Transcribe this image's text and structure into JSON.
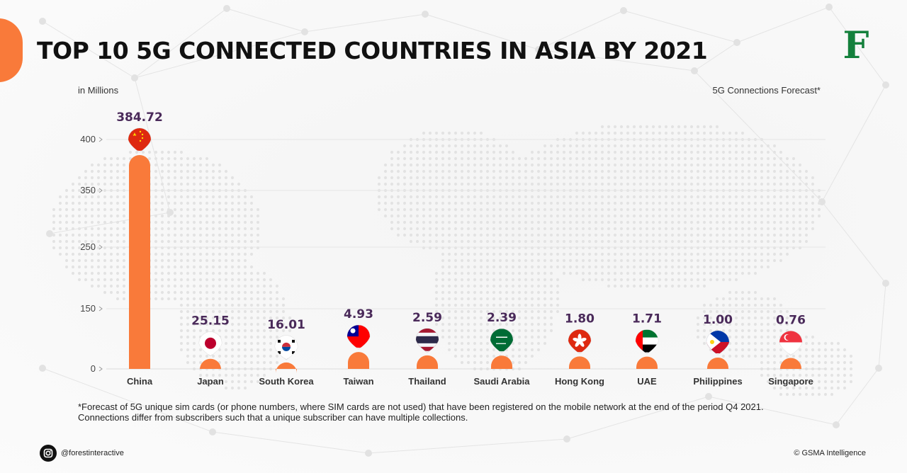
{
  "header": {
    "title": "TOP 10 5G CONNECTED COUNTRIES IN ASIA BY 2021",
    "logo_letter": "F",
    "unit_label": "in Millions",
    "legend_label": "5G Connections Forecast*"
  },
  "chart_data": {
    "type": "bar",
    "title": "TOP 10 5G CONNECTED COUNTRIES IN ASIA BY 2021",
    "ylabel": "in Millions",
    "xlabel": "",
    "yticks": [
      "0",
      "150",
      "250",
      "350",
      "400"
    ],
    "categories": [
      "China",
      "Japan",
      "South Korea",
      "Taiwan",
      "Thailand",
      "Saudi Arabia",
      "Hong Kong",
      "UAE",
      "Philippines",
      "Singapore"
    ],
    "values": [
      384.72,
      25.15,
      16.01,
      4.93,
      2.59,
      2.39,
      1.8,
      1.71,
      1.0,
      0.76
    ],
    "value_labels": [
      "384.72",
      "25.15",
      "16.01",
      "4.93",
      "2.59",
      "2.39",
      "1.80",
      "1.71",
      "1.00",
      "0.76"
    ],
    "series": [
      {
        "name": "5G Connections Forecast*",
        "values": [
          384.72,
          25.15,
          16.01,
          4.93,
          2.59,
          2.39,
          1.8,
          1.71,
          1.0,
          0.76
        ]
      }
    ],
    "flags": [
      "china-flag-icon",
      "japan-flag-icon",
      "south-korea-flag-icon",
      "taiwan-flag-icon",
      "thailand-flag-icon",
      "saudi-arabia-flag-icon",
      "hong-kong-flag-icon",
      "uae-flag-icon",
      "philippines-flag-icon",
      "singapore-flag-icon"
    ],
    "bar_color": "#f97a3a",
    "value_label_color": "#4a2a5a",
    "grid": true,
    "legend": "top-right"
  },
  "footer": {
    "footnote_line1": "*Forecast of 5G unique sim cards (or phone numbers, where SIM cards are not used) that have been registered on the mobile network at the end of the period Q4 2021.",
    "footnote_line2": "Connections differ from subscribers such that a unique subscriber can have multiple collections.",
    "social_handle": "@forestinteractive",
    "source": "© GSMA Intelligence"
  }
}
